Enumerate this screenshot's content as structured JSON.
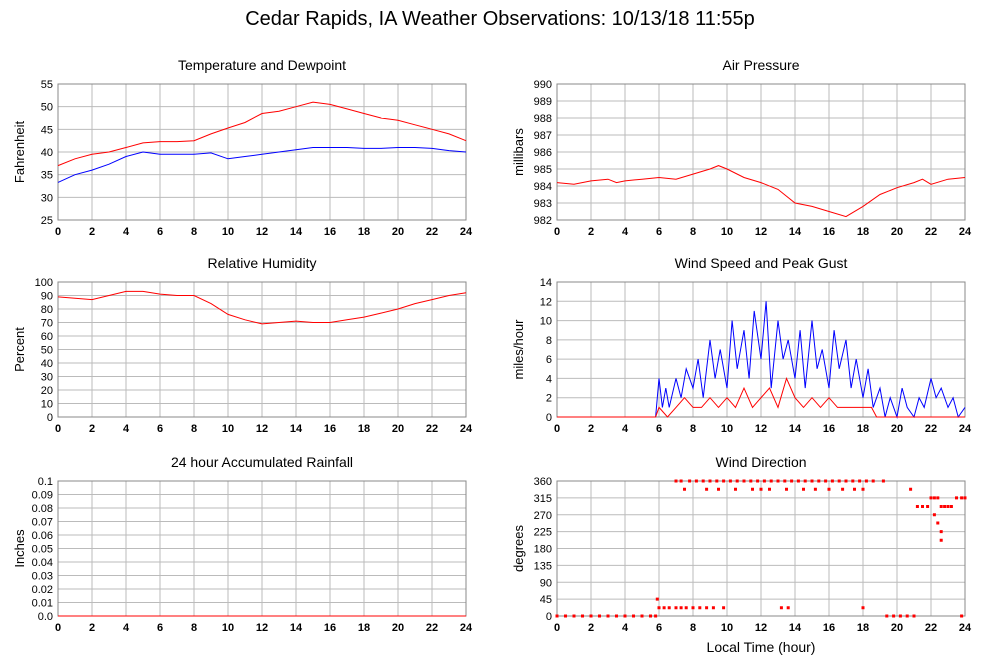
{
  "title": "Cedar Rapids, IA Weather Observations: 10/13/18 11:55p",
  "xlabel": "Local Time (hour)",
  "colors": {
    "primary": "#ff0000",
    "secondary": "#0000ff"
  },
  "chart_data": [
    {
      "id": "temp",
      "type": "line",
      "title": "Temperature and Dewpoint",
      "ylabel": "Fahrenheit",
      "xlim": [
        0,
        24
      ],
      "ylim": [
        25,
        55
      ],
      "xticks": [
        "0",
        "2",
        "4",
        "6",
        "8",
        "10",
        "12",
        "14",
        "16",
        "18",
        "20",
        "22",
        "24"
      ],
      "yticks": [
        "25",
        "30",
        "35",
        "40",
        "45",
        "50",
        "55"
      ],
      "series": [
        {
          "color": "#ff0000",
          "x": [
            0,
            1,
            2,
            3,
            4,
            5,
            6,
            7,
            8,
            9,
            10,
            11,
            12,
            13,
            14,
            15,
            16,
            17,
            18,
            19,
            20,
            21,
            22,
            23,
            24
          ],
          "y": [
            37,
            38.5,
            39.5,
            40,
            41,
            42,
            42.3,
            42.3,
            42.5,
            44,
            45.3,
            46.5,
            48.5,
            49,
            50,
            51,
            50.5,
            49.5,
            48.5,
            47.5,
            47,
            46,
            45,
            44,
            42.5
          ]
        },
        {
          "color": "#0000ff",
          "x": [
            0,
            1,
            2,
            3,
            4,
            5,
            6,
            7,
            8,
            9,
            10,
            11,
            12,
            13,
            14,
            15,
            16,
            17,
            18,
            19,
            20,
            21,
            22,
            23,
            24
          ],
          "y": [
            33.3,
            35,
            36,
            37.3,
            39,
            40,
            39.5,
            39.5,
            39.5,
            39.8,
            38.5,
            39,
            39.5,
            40,
            40.5,
            41,
            41,
            41,
            40.8,
            40.8,
            41,
            41,
            40.8,
            40.3,
            40
          ]
        }
      ]
    },
    {
      "id": "pressure",
      "type": "line",
      "title": "Air Pressure",
      "ylabel": "millibars",
      "xlim": [
        0,
        24
      ],
      "ylim": [
        982,
        990
      ],
      "xticks": [
        "0",
        "2",
        "4",
        "6",
        "8",
        "10",
        "12",
        "14",
        "16",
        "18",
        "20",
        "22",
        "24"
      ],
      "yticks": [
        "982",
        "983",
        "984",
        "985",
        "986",
        "987",
        "988",
        "989",
        "990"
      ],
      "series": [
        {
          "color": "#ff0000",
          "x": [
            0,
            1,
            2,
            3,
            3.5,
            4,
            5,
            6,
            7,
            8,
            9,
            9.5,
            10,
            11,
            12,
            13,
            14,
            15,
            16,
            17,
            18,
            19,
            20,
            21,
            21.5,
            22,
            23,
            24
          ],
          "y": [
            984.2,
            984.1,
            984.3,
            984.4,
            984.2,
            984.3,
            984.4,
            984.5,
            984.4,
            984.7,
            985.0,
            985.2,
            985.0,
            984.5,
            984.2,
            983.8,
            983.0,
            982.8,
            982.5,
            982.2,
            982.8,
            983.5,
            983.9,
            984.2,
            984.4,
            984.1,
            984.4,
            984.5
          ]
        }
      ]
    },
    {
      "id": "humidity",
      "type": "line",
      "title": "Relative Humidity",
      "ylabel": "Percent",
      "xlim": [
        0,
        24
      ],
      "ylim": [
        0,
        100
      ],
      "xticks": [
        "0",
        "2",
        "4",
        "6",
        "8",
        "10",
        "12",
        "14",
        "16",
        "18",
        "20",
        "22",
        "24"
      ],
      "yticks": [
        "0",
        "10",
        "20",
        "30",
        "40",
        "50",
        "60",
        "70",
        "80",
        "90",
        "100"
      ],
      "series": [
        {
          "color": "#ff0000",
          "x": [
            0,
            1,
            2,
            3,
            4,
            5,
            6,
            7,
            8,
            9,
            10,
            11,
            12,
            13,
            14,
            15,
            16,
            17,
            18,
            19,
            20,
            21,
            22,
            23,
            24
          ],
          "y": [
            89,
            88,
            87,
            90,
            93,
            93,
            91,
            90,
            90,
            84,
            76,
            72,
            69,
            70,
            71,
            70,
            70,
            72,
            74,
            77,
            80,
            84,
            87,
            90,
            92
          ]
        }
      ]
    },
    {
      "id": "wind",
      "type": "line",
      "title": "Wind Speed and Peak Gust",
      "ylabel": "miles/hour",
      "xlim": [
        0,
        24
      ],
      "ylim": [
        0,
        14
      ],
      "xticks": [
        "0",
        "2",
        "4",
        "6",
        "8",
        "10",
        "12",
        "14",
        "16",
        "18",
        "20",
        "22",
        "24"
      ],
      "yticks": [
        "0",
        "2",
        "4",
        "6",
        "8",
        "10",
        "12",
        "14"
      ],
      "series": [
        {
          "color": "#0000ff",
          "x": [
            0,
            5.8,
            6,
            6.2,
            6.4,
            6.6,
            7,
            7.3,
            7.6,
            8,
            8.3,
            8.6,
            9,
            9.3,
            9.6,
            10,
            10.3,
            10.6,
            11,
            11.3,
            11.6,
            12,
            12.3,
            12.6,
            13,
            13.3,
            13.6,
            14,
            14.3,
            14.6,
            15,
            15.3,
            15.6,
            16,
            16.3,
            16.6,
            17,
            17.3,
            17.6,
            18,
            18.3,
            18.6,
            19,
            19.3,
            19.6,
            20,
            20.3,
            20.6,
            21,
            21.3,
            21.6,
            22,
            22.3,
            22.6,
            23,
            23.3,
            23.6,
            24
          ],
          "y": [
            0,
            0,
            4,
            1,
            3,
            1,
            4,
            2,
            5,
            3,
            6,
            2,
            8,
            4,
            7,
            3,
            10,
            5,
            9,
            4,
            11,
            6,
            12,
            3,
            10,
            6,
            8,
            4,
            9,
            3,
            10,
            5,
            7,
            3,
            9,
            5,
            8,
            3,
            6,
            2,
            5,
            1,
            3,
            0,
            2,
            0,
            3,
            1,
            0,
            2,
            1,
            4,
            2,
            3,
            1,
            2,
            0,
            1
          ]
        },
        {
          "color": "#ff0000",
          "x": [
            0,
            5.8,
            6,
            6.5,
            7,
            7.5,
            8,
            8.5,
            9,
            9.5,
            10,
            10.5,
            11,
            11.5,
            12,
            12.5,
            13,
            13.5,
            14,
            14.5,
            15,
            15.5,
            16,
            16.5,
            17,
            17.5,
            18,
            18.5,
            18.8,
            19,
            24
          ],
          "y": [
            0,
            0,
            1,
            0,
            1,
            2,
            1,
            1,
            2,
            1,
            2,
            1,
            3,
            1,
            2,
            3,
            1,
            4,
            2,
            1,
            2,
            1,
            2,
            1,
            1,
            1,
            1,
            1,
            0,
            0,
            0
          ]
        }
      ]
    },
    {
      "id": "rain",
      "type": "line",
      "title": "24 hour Accumulated Rainfall",
      "ylabel": "Inches",
      "xlim": [
        0,
        24
      ],
      "ylim": [
        0,
        0.1
      ],
      "xticks": [
        "0",
        "2",
        "4",
        "6",
        "8",
        "10",
        "12",
        "14",
        "16",
        "18",
        "20",
        "22",
        "24"
      ],
      "yticks": [
        "0.0",
        "0.01",
        "0.02",
        "0.03",
        "0.04",
        "0.05",
        "0.06",
        "0.07",
        "0.08",
        "0.09",
        "0.1"
      ],
      "series": [
        {
          "color": "#ff0000",
          "x": [
            0,
            24
          ],
          "y": [
            0,
            0
          ]
        }
      ]
    },
    {
      "id": "direction",
      "type": "scatter",
      "title": "Wind Direction",
      "ylabel": "degrees",
      "xlim": [
        0,
        24
      ],
      "ylim": [
        0,
        360
      ],
      "xticks": [
        "0",
        "2",
        "4",
        "6",
        "8",
        "10",
        "12",
        "14",
        "16",
        "18",
        "20",
        "22",
        "24"
      ],
      "yticks": [
        "0",
        "45",
        "90",
        "135",
        "180",
        "225",
        "270",
        "315",
        "360"
      ],
      "series": [
        {
          "color": "#ff0000",
          "x": [
            0,
            0.5,
            1,
            1.5,
            2,
            2.5,
            3,
            3.5,
            4,
            4.5,
            5,
            5.5,
            5.8,
            5.9,
            6,
            6.3,
            6.6,
            7,
            7.3,
            7.6,
            8,
            8.4,
            8.8,
            9.2,
            9.8,
            7,
            7.3,
            7.8,
            8.2,
            8.6,
            9,
            9.4,
            9.8,
            10.2,
            10.6,
            11,
            11.4,
            11.8,
            12.2,
            12.6,
            13,
            13.4,
            13.8,
            14.2,
            14.6,
            15,
            15.4,
            15.8,
            16.2,
            16.6,
            17,
            17.4,
            17.8,
            18.2,
            18.6,
            19.2,
            7.5,
            8.8,
            9.5,
            10.5,
            11.5,
            12,
            12.5,
            13.5,
            14.5,
            15.2,
            16,
            16.8,
            17.5,
            18,
            19.4,
            19.8,
            20.2,
            20.6,
            21,
            21.2,
            21.5,
            21.8,
            22,
            22.2,
            22.4,
            22.6,
            22.8,
            23,
            23.2,
            23.5,
            23.8,
            24,
            22.2,
            22.4,
            22.6,
            22.6,
            23.8,
            13.2,
            13.6,
            18,
            20.8
          ],
          "y": [
            0,
            0,
            0,
            0,
            0,
            0,
            0,
            0,
            0,
            0,
            0,
            0,
            0,
            45,
            22,
            22,
            22,
            22,
            22,
            22,
            22,
            22,
            22,
            22,
            22,
            360,
            360,
            360,
            360,
            360,
            360,
            360,
            360,
            360,
            360,
            360,
            360,
            360,
            360,
            360,
            360,
            360,
            360,
            360,
            360,
            360,
            360,
            360,
            360,
            360,
            360,
            360,
            360,
            360,
            360,
            360,
            338,
            338,
            338,
            338,
            338,
            338,
            338,
            338,
            338,
            338,
            338,
            338,
            338,
            338,
            0,
            0,
            0,
            0,
            0,
            292,
            292,
            292,
            315,
            315,
            315,
            292,
            292,
            292,
            292,
            315,
            315,
            315,
            270,
            248,
            225,
            202,
            0,
            22,
            22,
            22,
            338
          ]
        }
      ]
    }
  ]
}
